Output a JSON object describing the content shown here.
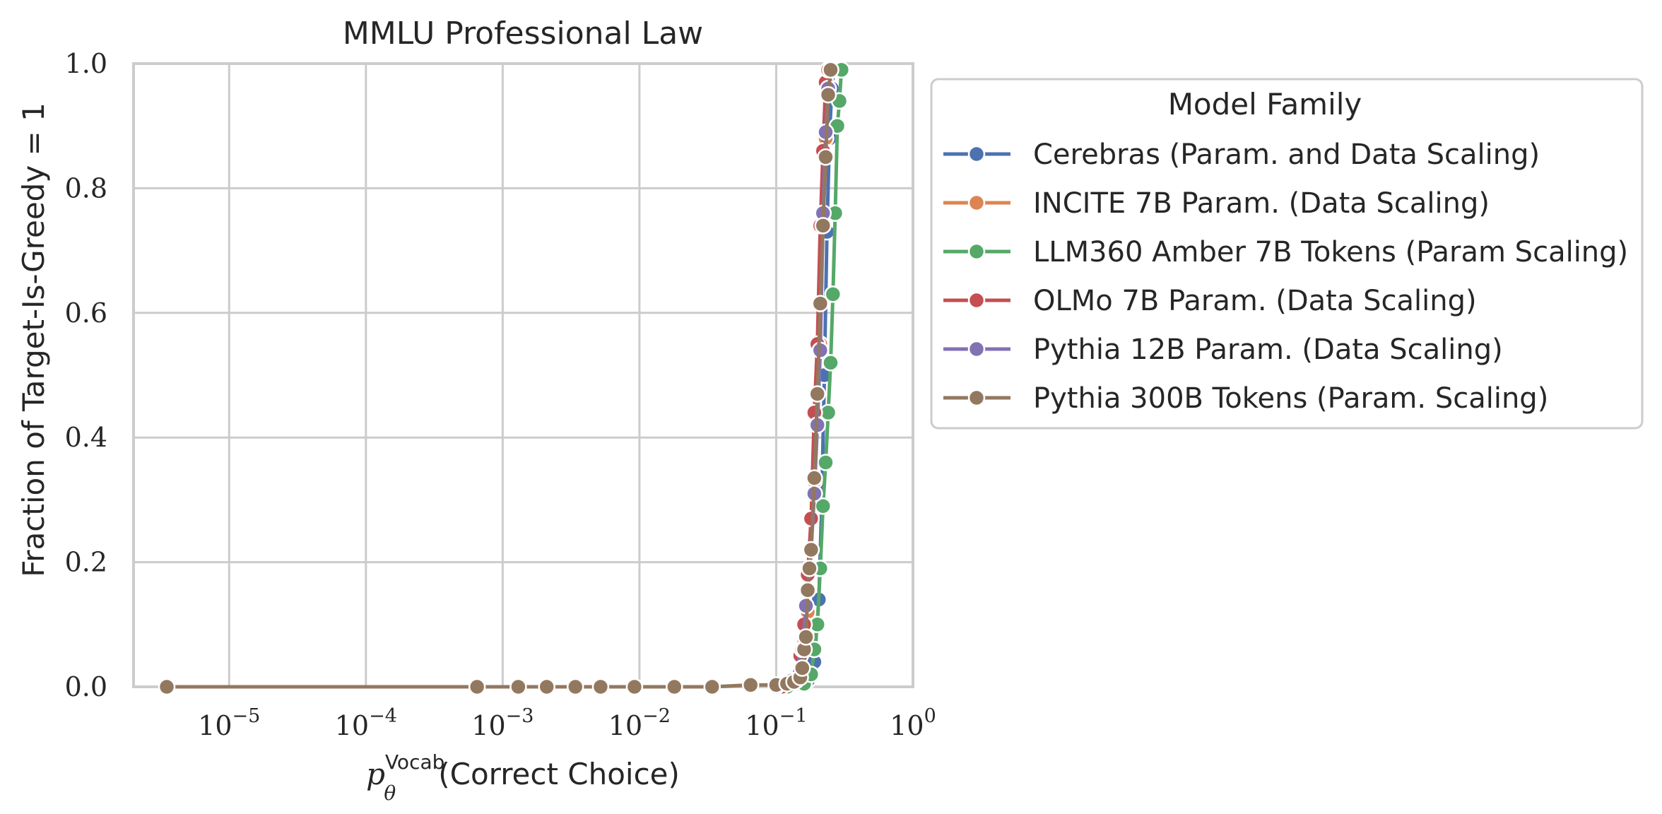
{
  "chart_data": {
    "type": "line",
    "title": "MMLU Professional Law",
    "xlabel": {
      "base": "p",
      "subscript": "θ",
      "superscript": "Vocab",
      "rest": "(Correct Choice)"
    },
    "ylabel": "Fraction of Target-Is-Greedy = 1",
    "xscale": "log",
    "xlim": [
      2e-06,
      1.0
    ],
    "ylim": [
      0.0,
      1.0
    ],
    "x_ticks": [
      {
        "value": 1e-05,
        "base": "10",
        "exp": "−5"
      },
      {
        "value": 0.0001,
        "base": "10",
        "exp": "−4"
      },
      {
        "value": 0.001,
        "base": "10",
        "exp": "−3"
      },
      {
        "value": 0.01,
        "base": "10",
        "exp": "−2"
      },
      {
        "value": 0.1,
        "base": "10",
        "exp": "−1"
      },
      {
        "value": 1,
        "base": "10",
        "exp": "0"
      }
    ],
    "y_ticks": [
      {
        "value": 0.0,
        "label": "0.0"
      },
      {
        "value": 0.2,
        "label": "0.2"
      },
      {
        "value": 0.4,
        "label": "0.4"
      },
      {
        "value": 0.6,
        "label": "0.6"
      },
      {
        "value": 0.8,
        "label": "0.8"
      },
      {
        "value": 1.0,
        "label": "1.0"
      }
    ],
    "grid": true,
    "legend": {
      "title": "Model Family",
      "placement": "outside right"
    },
    "series": [
      {
        "name": "Cerebras (Param. and Data Scaling)",
        "color": "#4c72b0",
        "points": [
          [
            0.12,
            0.0
          ],
          [
            0.15,
            0.005
          ],
          [
            0.17,
            0.01
          ],
          [
            0.19,
            0.04
          ],
          [
            0.205,
            0.14
          ],
          [
            0.215,
            0.29
          ],
          [
            0.225,
            0.5
          ],
          [
            0.235,
            0.73
          ],
          [
            0.245,
            0.88
          ],
          [
            0.255,
            0.96
          ],
          [
            0.265,
            0.99
          ]
        ]
      },
      {
        "name": "INCITE 7B Param. (Data Scaling)",
        "color": "#dd8452",
        "points": [
          [
            0.1,
            0.0
          ],
          [
            0.13,
            0.005
          ],
          [
            0.15,
            0.02
          ],
          [
            0.16,
            0.07
          ],
          [
            0.17,
            0.12
          ],
          [
            0.18,
            0.22
          ],
          [
            0.19,
            0.33
          ],
          [
            0.2,
            0.42
          ],
          [
            0.21,
            0.55
          ],
          [
            0.22,
            0.75
          ],
          [
            0.23,
            0.88
          ],
          [
            0.24,
            0.96
          ],
          [
            0.25,
            0.99
          ]
        ]
      },
      {
        "name": "LLM360 Amber 7B Tokens (Param Scaling)",
        "color": "#55a868",
        "points": [
          [
            0.12,
            0.0
          ],
          [
            0.16,
            0.005
          ],
          [
            0.18,
            0.02
          ],
          [
            0.19,
            0.06
          ],
          [
            0.2,
            0.1
          ],
          [
            0.21,
            0.19
          ],
          [
            0.22,
            0.29
          ],
          [
            0.23,
            0.36
          ],
          [
            0.24,
            0.44
          ],
          [
            0.25,
            0.52
          ],
          [
            0.26,
            0.63
          ],
          [
            0.27,
            0.76
          ],
          [
            0.28,
            0.9
          ],
          [
            0.29,
            0.94
          ],
          [
            0.3,
            0.99
          ]
        ]
      },
      {
        "name": "OLMo 7B Param. (Data Scaling)",
        "color": "#c44e52",
        "points": [
          [
            0.11,
            0.0
          ],
          [
            0.14,
            0.01
          ],
          [
            0.15,
            0.05
          ],
          [
            0.16,
            0.1
          ],
          [
            0.17,
            0.18
          ],
          [
            0.18,
            0.27
          ],
          [
            0.19,
            0.44
          ],
          [
            0.2,
            0.55
          ],
          [
            0.21,
            0.74
          ],
          [
            0.22,
            0.86
          ],
          [
            0.23,
            0.97
          ],
          [
            0.24,
            0.99
          ]
        ]
      },
      {
        "name": "Pythia 12B Param. (Data Scaling)",
        "color": "#8172b3",
        "points": [
          [
            0.1,
            0.0
          ],
          [
            0.13,
            0.01
          ],
          [
            0.155,
            0.06
          ],
          [
            0.165,
            0.13
          ],
          [
            0.18,
            0.22
          ],
          [
            0.19,
            0.31
          ],
          [
            0.2,
            0.42
          ],
          [
            0.21,
            0.54
          ],
          [
            0.22,
            0.76
          ],
          [
            0.23,
            0.89
          ],
          [
            0.24,
            0.96
          ],
          [
            0.25,
            0.99
          ]
        ]
      },
      {
        "name": "Pythia 300B Tokens (Param. Scaling)",
        "color": "#937860",
        "points": [
          [
            3.5e-06,
            0.0
          ],
          [
            0.00065,
            0.0
          ],
          [
            0.0013,
            0.0
          ],
          [
            0.0021,
            0.0
          ],
          [
            0.0034,
            0.0
          ],
          [
            0.0052,
            0.0
          ],
          [
            0.0092,
            0.0
          ],
          [
            0.018,
            0.0
          ],
          [
            0.034,
            0.0
          ],
          [
            0.065,
            0.003
          ],
          [
            0.1,
            0.003
          ],
          [
            0.12,
            0.005
          ],
          [
            0.135,
            0.008
          ],
          [
            0.15,
            0.015
          ],
          [
            0.155,
            0.03
          ],
          [
            0.16,
            0.06
          ],
          [
            0.165,
            0.08
          ],
          [
            0.17,
            0.155
          ],
          [
            0.175,
            0.19
          ],
          [
            0.18,
            0.22
          ],
          [
            0.19,
            0.335
          ],
          [
            0.2,
            0.47
          ],
          [
            0.21,
            0.615
          ],
          [
            0.22,
            0.74
          ],
          [
            0.23,
            0.85
          ],
          [
            0.24,
            0.95
          ],
          [
            0.25,
            0.99
          ]
        ]
      }
    ]
  }
}
